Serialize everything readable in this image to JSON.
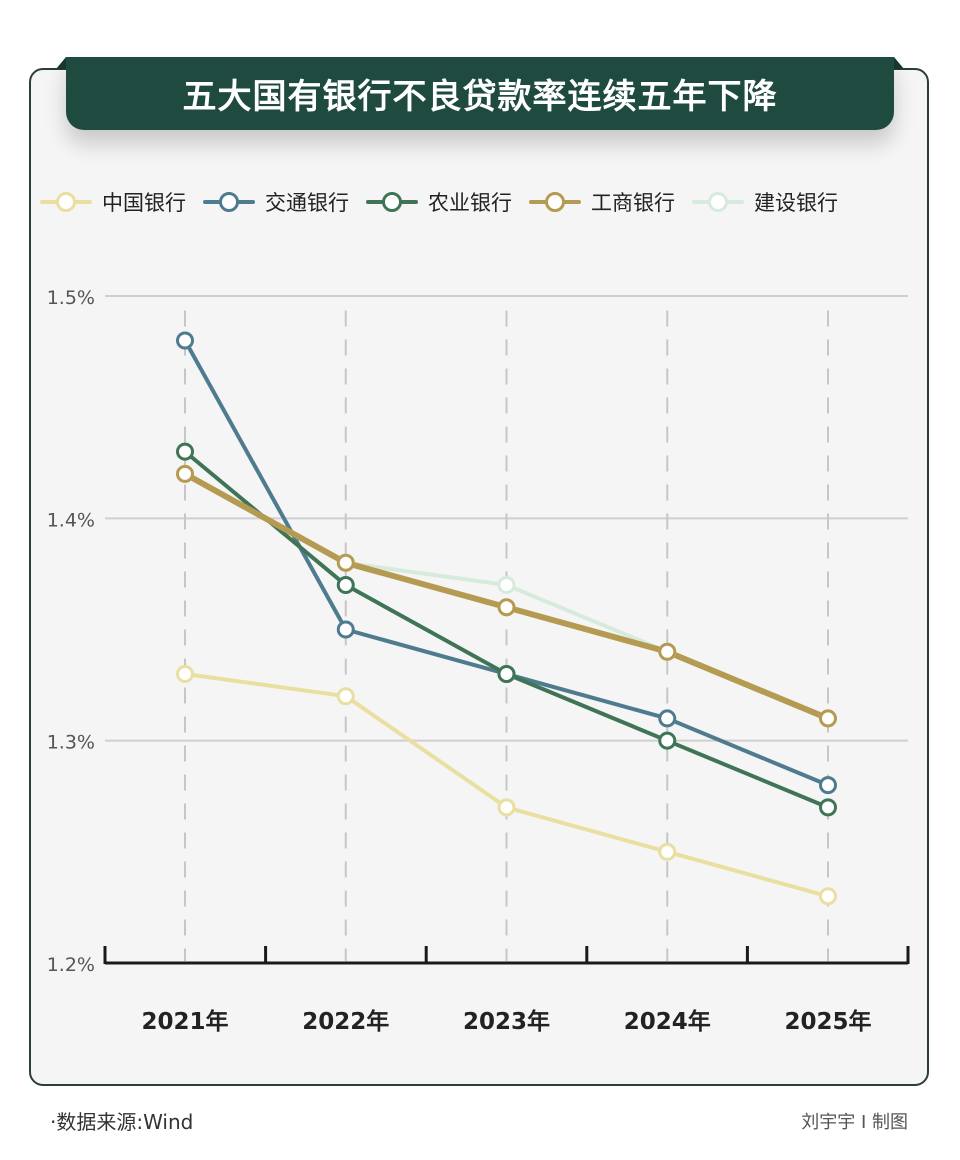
{
  "chart_data": {
    "type": "line",
    "title": "五大国有银行不良贷款率连续五年下降",
    "categories": [
      "2021年",
      "2022年",
      "2023年",
      "2024年",
      "2025年"
    ],
    "y_ticks": [
      "1.2%",
      "1.3%",
      "1.4%",
      "1.5%"
    ],
    "y_tick_values": [
      1.2,
      1.3,
      1.4,
      1.5
    ],
    "ylim": [
      1.2,
      1.5
    ],
    "y_unit": "%",
    "grid": true,
    "legend_position": "top",
    "series": [
      {
        "name": "中国银行",
        "color": "#e9dfa0",
        "values": [
          1.33,
          1.32,
          1.27,
          1.25,
          1.23
        ]
      },
      {
        "name": "交通银行",
        "color": "#4f7b8f",
        "values": [
          1.48,
          1.35,
          1.33,
          1.31,
          1.28
        ]
      },
      {
        "name": "农业银行",
        "color": "#3f7556",
        "values": [
          1.43,
          1.37,
          1.33,
          1.3,
          1.27
        ]
      },
      {
        "name": "工商银行",
        "color": "#b59a52",
        "values": [
          1.42,
          1.38,
          1.36,
          1.34,
          1.31
        ]
      },
      {
        "name": "建设银行",
        "color": "#d7ebdc",
        "values": [
          1.42,
          1.38,
          1.37,
          1.34,
          1.31
        ]
      }
    ]
  },
  "footer": {
    "source": "·数据来源:Wind",
    "credit": "刘宇宇 I 制图"
  }
}
